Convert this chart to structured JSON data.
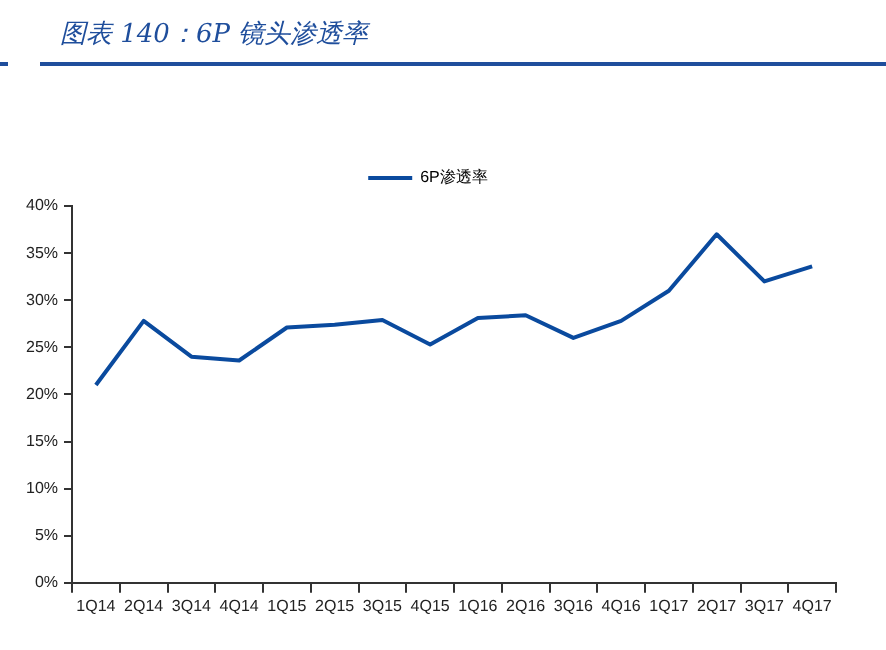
{
  "chart_data": {
    "type": "line",
    "title": "图表 140：6P 镜头渗透率",
    "categories": [
      "1Q14",
      "2Q14",
      "3Q14",
      "4Q14",
      "1Q15",
      "2Q15",
      "3Q15",
      "4Q15",
      "1Q16",
      "2Q16",
      "3Q16",
      "4Q16",
      "1Q17",
      "2Q17",
      "3Q17",
      "4Q17"
    ],
    "series": [
      {
        "name": "6P渗透率",
        "color": "#0a4a9e",
        "values": [
          21,
          27.8,
          24,
          23.6,
          27.1,
          27.4,
          27.9,
          25.3,
          28.1,
          28.4,
          26,
          27.8,
          31,
          37,
          32,
          33.6
        ]
      }
    ],
    "ylim": [
      0,
      40
    ],
    "yticks": [
      {
        "value": 0,
        "label": "0%"
      },
      {
        "value": 5,
        "label": "5%"
      },
      {
        "value": 10,
        "label": "10%"
      },
      {
        "value": 15,
        "label": "15%"
      },
      {
        "value": 20,
        "label": "20%"
      },
      {
        "value": 25,
        "label": "25%"
      },
      {
        "value": 30,
        "label": "30%"
      },
      {
        "value": 35,
        "label": "35%"
      },
      {
        "value": 40,
        "label": "40%"
      }
    ],
    "grid": false,
    "legend": "top",
    "marker": "none",
    "line_style": "solid"
  }
}
